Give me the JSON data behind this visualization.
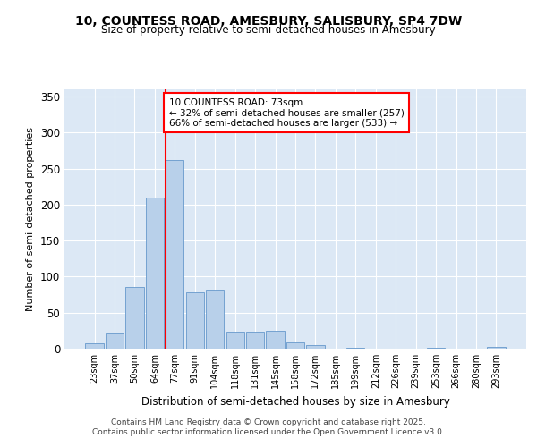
{
  "title_line1": "10, COUNTESS ROAD, AMESBURY, SALISBURY, SP4 7DW",
  "title_line2": "Size of property relative to semi-detached houses in Amesbury",
  "xlabel": "Distribution of semi-detached houses by size in Amesbury",
  "ylabel": "Number of semi-detached properties",
  "categories": [
    "23sqm",
    "37sqm",
    "50sqm",
    "64sqm",
    "77sqm",
    "91sqm",
    "104sqm",
    "118sqm",
    "131sqm",
    "145sqm",
    "158sqm",
    "172sqm",
    "185sqm",
    "199sqm",
    "212sqm",
    "226sqm",
    "239sqm",
    "253sqm",
    "266sqm",
    "280sqm",
    "293sqm"
  ],
  "values": [
    8,
    21,
    86,
    210,
    262,
    78,
    82,
    23,
    24,
    25,
    9,
    5,
    0,
    1,
    0,
    0,
    0,
    1,
    0,
    0,
    2
  ],
  "bar_color": "#b8d0ea",
  "bar_edge_color": "#6699cc",
  "red_line_index": 4,
  "annotation_text": "10 COUNTESS ROAD: 73sqm\n← 32% of semi-detached houses are smaller (257)\n66% of semi-detached houses are larger (533) →",
  "ylim": [
    0,
    360
  ],
  "yticks": [
    0,
    50,
    100,
    150,
    200,
    250,
    300,
    350
  ],
  "background_color": "#dce8f5",
  "footer_line1": "Contains HM Land Registry data © Crown copyright and database right 2025.",
  "footer_line2": "Contains public sector information licensed under the Open Government Licence v3.0."
}
